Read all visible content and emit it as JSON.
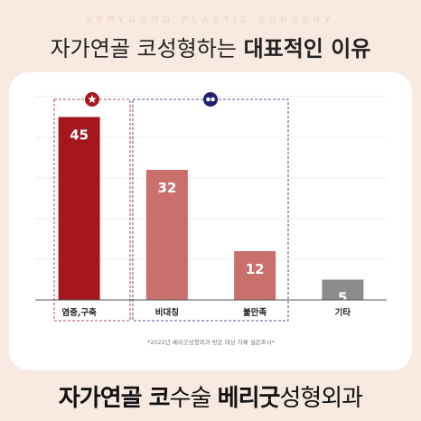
{
  "header": {
    "watermark": "VERYGOOD PLASTIC SURGERY",
    "title_light": "자가연골 코성형하는 ",
    "title_bold": "대표적인 이유"
  },
  "footer": {
    "part1_bold": "자가연골 코",
    "part2_light": "수술 ",
    "part3_bold": "베리굿",
    "part4_light": "성형외과"
  },
  "colors": {
    "bar_dark": "#a3171d",
    "bar_mid": "#c9706d",
    "bar_gray": "#8c8c8c",
    "box_red": "#a3171d",
    "box_navy": "#1f1f6e"
  },
  "chart_data": {
    "type": "bar",
    "categories": [
      "염증,구축",
      "비대칭",
      "불만족",
      "기타"
    ],
    "values": [
      45,
      32,
      12,
      5
    ],
    "ylim": [
      0,
      50
    ],
    "grid": true,
    "note": "*2022년 베리굿성형외과 방문 대상 자체 설문조사*",
    "group_icons": [
      "star-icon",
      "infinity-icon"
    ]
  }
}
